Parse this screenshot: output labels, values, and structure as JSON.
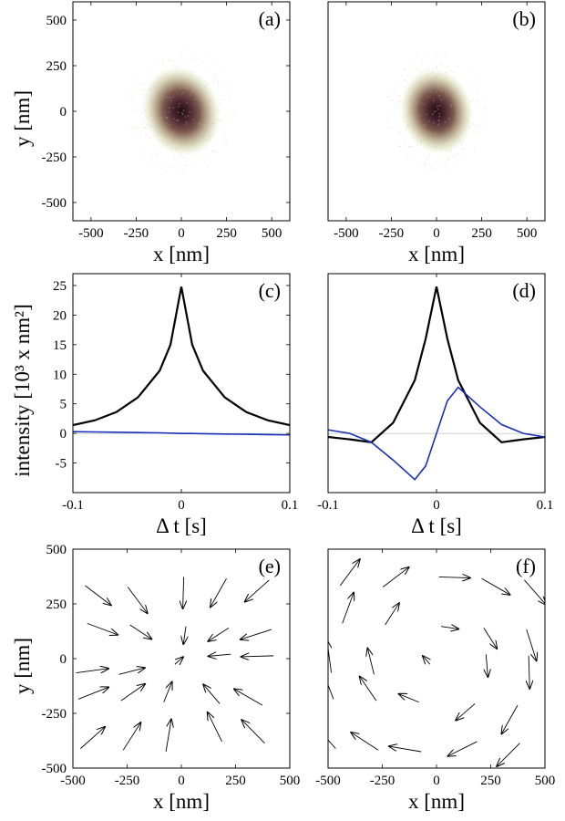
{
  "chart_data": [
    {
      "panel": "(a)",
      "type": "heatmap",
      "xlabel": "x [nm]",
      "ylabel": "y [nm]",
      "xlim": [
        -600,
        600
      ],
      "ylim": [
        -600,
        600
      ],
      "xticks": [
        -500,
        -250,
        0,
        250,
        500
      ],
      "yticks": [
        -500,
        -250,
        0,
        250,
        500
      ],
      "colormap": [
        "#ffffff",
        "#e9eccc",
        "#b3a183",
        "#6e3c3a",
        "#1e0e12"
      ],
      "spot": {
        "center": [
          0,
          0
        ],
        "sigma_x": 85,
        "sigma_y": 100,
        "tilt_deg": -20
      }
    },
    {
      "panel": "(b)",
      "type": "heatmap",
      "xlabel": "x [nm]",
      "ylabel": "",
      "xlim": [
        -600,
        600
      ],
      "ylim": [
        -600,
        600
      ],
      "xticks": [
        -500,
        -250,
        0,
        250,
        500
      ],
      "yticks": [],
      "colormap": [
        "#ffffff",
        "#e9eccc",
        "#b3a183",
        "#6e3c3a",
        "#1e0e12"
      ],
      "spot": {
        "center": [
          0,
          0
        ],
        "sigma_x": 80,
        "sigma_y": 95,
        "tilt_deg": -15
      }
    },
    {
      "panel": "(c)",
      "type": "line",
      "xlabel": "Δ t [s]",
      "ylabel": "intensity [10³ x nm²]",
      "xlim": [
        -0.1,
        0.1
      ],
      "ylim": [
        -10,
        27
      ],
      "xticks": [
        -0.1,
        0,
        0.1
      ],
      "yticks": [
        -5,
        0,
        5,
        10,
        15,
        20,
        25
      ],
      "x": [
        -0.1,
        -0.08,
        -0.06,
        -0.04,
        -0.02,
        -0.01,
        0,
        0.01,
        0.02,
        0.04,
        0.06,
        0.08,
        0.1
      ],
      "series": [
        {
          "name": "black",
          "color": "#000000",
          "values": [
            1.4,
            2.2,
            3.6,
            6.1,
            10.6,
            15.0,
            24.8,
            15.0,
            10.6,
            6.1,
            3.6,
            2.2,
            1.4
          ]
        },
        {
          "name": "blue",
          "color": "#1a2fb8",
          "values": [
            0.3,
            0.25,
            0.2,
            0.15,
            0.1,
            0.05,
            0.0,
            0.0,
            -0.05,
            -0.1,
            -0.15,
            -0.2,
            -0.25
          ]
        }
      ]
    },
    {
      "panel": "(d)",
      "type": "line",
      "xlabel": "Δ t [s]",
      "ylabel": "",
      "xlim": [
        -0.1,
        0.1
      ],
      "ylim": [
        -10,
        27
      ],
      "xticks": [
        -0.1,
        0,
        0.1
      ],
      "yticks": [],
      "x": [
        -0.1,
        -0.08,
        -0.06,
        -0.04,
        -0.02,
        -0.01,
        0,
        0.01,
        0.02,
        0.04,
        0.06,
        0.08,
        0.1
      ],
      "series": [
        {
          "name": "black",
          "color": "#000000",
          "values": [
            -0.6,
            -1.0,
            -1.5,
            1.8,
            9.0,
            16.0,
            24.8,
            16.0,
            9.0,
            1.8,
            -1.5,
            -1.0,
            -0.6
          ]
        },
        {
          "name": "blue",
          "color": "#1a2fb8",
          "values": [
            0.6,
            0.0,
            -1.5,
            -4.5,
            -7.8,
            -5.5,
            0.0,
            5.5,
            7.8,
            4.5,
            1.5,
            0.0,
            -0.6
          ]
        }
      ]
    },
    {
      "panel": "(e)",
      "type": "quiver",
      "xlabel": "x [nm]",
      "ylabel": "y [nm]",
      "xlim": [
        -500,
        500
      ],
      "ylim": [
        -500,
        500
      ],
      "xticks": [
        -500,
        -250,
        0,
        250,
        500
      ],
      "yticks": [
        -500,
        -250,
        0,
        250,
        500
      ],
      "field": "radial-inward"
    },
    {
      "panel": "(f)",
      "type": "quiver",
      "xlabel": "x [nm]",
      "ylabel": "",
      "xlim": [
        -500,
        500
      ],
      "ylim": [
        -500,
        500
      ],
      "xticks": [
        -500,
        -250,
        0,
        250,
        500
      ],
      "yticks": [],
      "field": "vortex-clockwise"
    }
  ]
}
